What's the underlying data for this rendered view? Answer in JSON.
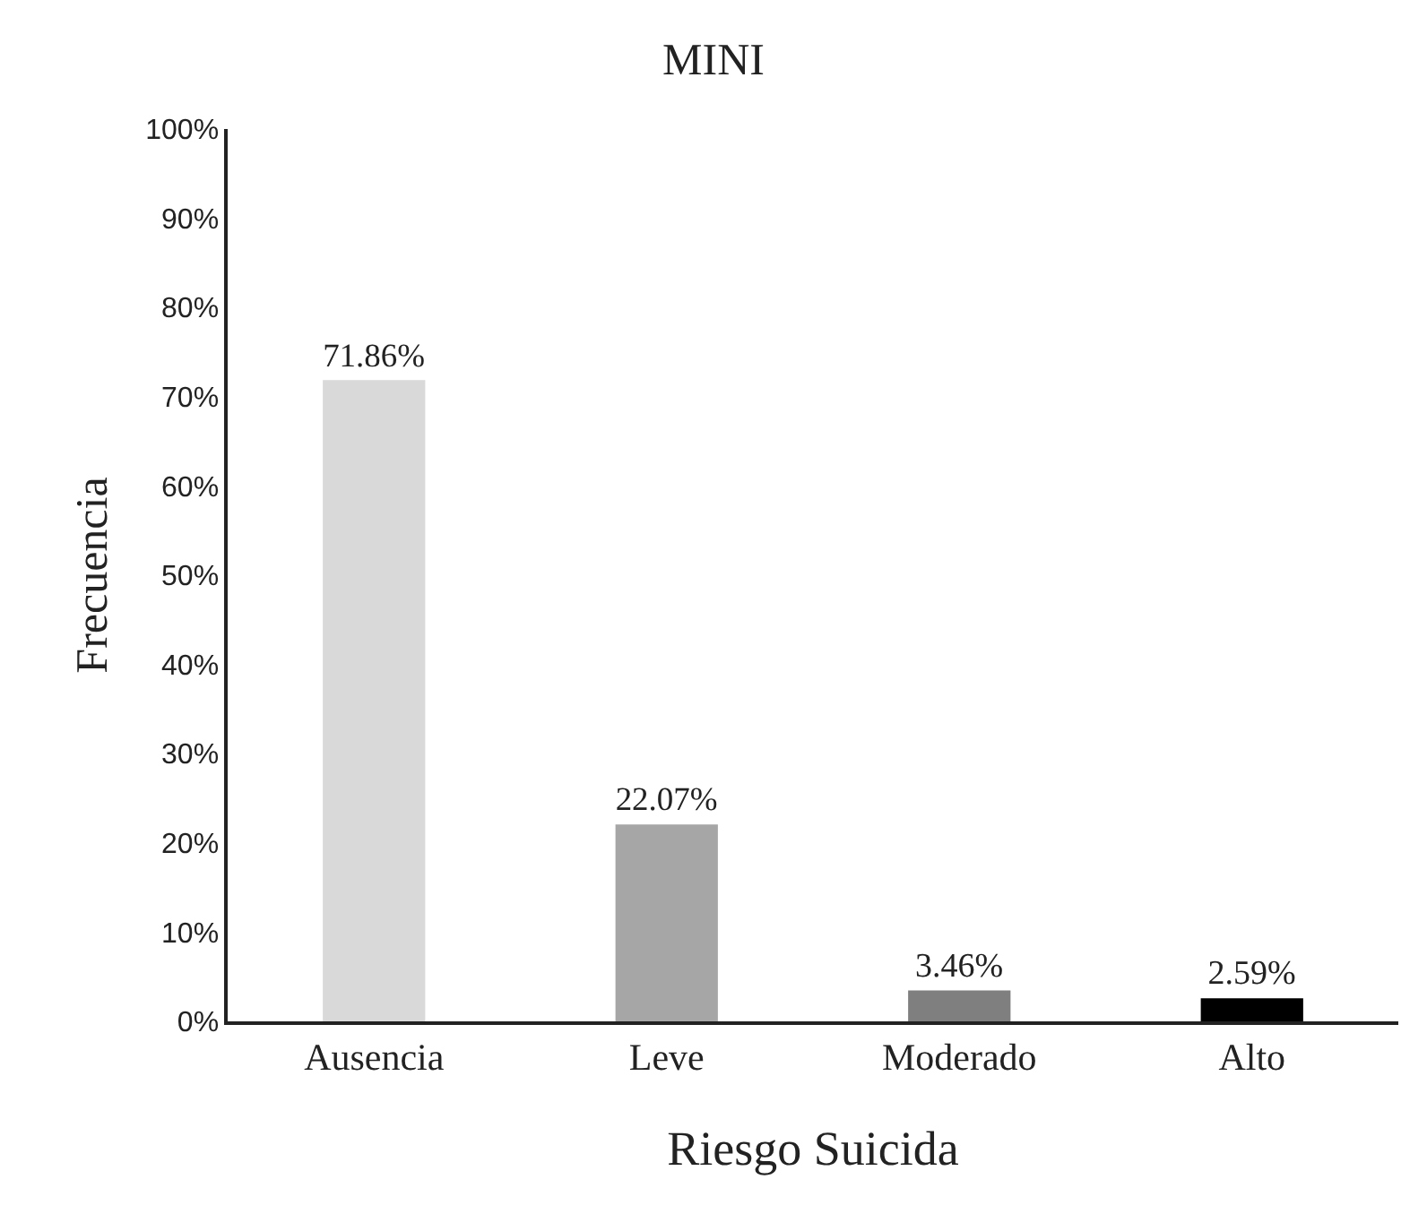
{
  "chart_data": {
    "type": "bar",
    "title": "MINI",
    "xlabel": "Riesgo Suicida",
    "ylabel": "Frecuencia",
    "categories": [
      "Ausencia",
      "Leve",
      "Moderado",
      "Alto"
    ],
    "values": [
      71.86,
      22.07,
      3.46,
      2.59
    ],
    "colors": [
      "#d9d9d9",
      "#a6a6a6",
      "#7f7f7f",
      "#000000"
    ],
    "value_labels": [
      "71.86%",
      "22.07%",
      "3.46%",
      "2.59%"
    ],
    "ylim": [
      0,
      100
    ],
    "yticks": [
      {
        "value": 0,
        "label": "0%"
      },
      {
        "value": 10,
        "label": "10%"
      },
      {
        "value": 20,
        "label": "20%"
      },
      {
        "value": 30,
        "label": "30%"
      },
      {
        "value": 40,
        "label": "40%"
      },
      {
        "value": 50,
        "label": "50%"
      },
      {
        "value": 60,
        "label": "60%"
      },
      {
        "value": 70,
        "label": "70%"
      },
      {
        "value": 80,
        "label": "80%"
      },
      {
        "value": 90,
        "label": "90%"
      },
      {
        "value": 100,
        "label": "100%"
      }
    ],
    "legend": false
  }
}
